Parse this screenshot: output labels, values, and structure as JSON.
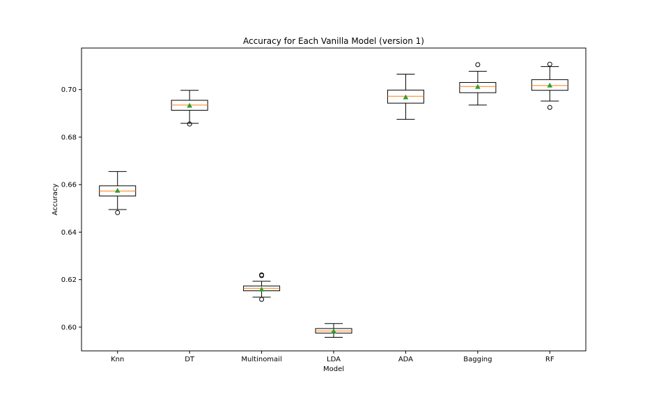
{
  "chart_data": {
    "type": "boxplot",
    "title": "Accuracy for Each Vanilla Model (version 1)",
    "xlabel": "Model",
    "ylabel": "Accuracy",
    "ylim": [
      0.59,
      0.7175
    ],
    "yticks": [
      0.6,
      0.62,
      0.64,
      0.66,
      0.68,
      0.7
    ],
    "ytick_labels": [
      "0.60",
      "0.62",
      "0.64",
      "0.66",
      "0.68",
      "0.70"
    ],
    "grid": false,
    "categories": [
      "Knn",
      "DT",
      "Multinomail",
      "LDA",
      "ADA",
      "Bagging",
      "RF"
    ],
    "boxes": [
      {
        "name": "Knn",
        "whisker_low": 0.6495,
        "q1": 0.6552,
        "median": 0.6573,
        "q3": 0.6595,
        "whisker_high": 0.6655,
        "mean": 0.6575,
        "outliers": [
          0.6482
        ]
      },
      {
        "name": "DT",
        "whisker_low": 0.6858,
        "q1": 0.6913,
        "median": 0.6935,
        "q3": 0.6955,
        "whisker_high": 0.6997,
        "mean": 0.6933,
        "outliers": [
          0.6855
        ]
      },
      {
        "name": "Multinomail",
        "whisker_low": 0.6126,
        "q1": 0.6153,
        "median": 0.6163,
        "q3": 0.6173,
        "whisker_high": 0.6193,
        "mean": 0.6159,
        "outliers": [
          0.6117,
          0.6217,
          0.622
        ]
      },
      {
        "name": "LDA",
        "whisker_low": 0.5957,
        "q1": 0.5975,
        "median": 0.5984,
        "q3": 0.5994,
        "whisker_high": 0.6015,
        "mean": 0.5983,
        "outliers": []
      },
      {
        "name": "ADA",
        "whisker_low": 0.6875,
        "q1": 0.6943,
        "median": 0.6972,
        "q3": 0.6998,
        "whisker_high": 0.7065,
        "mean": 0.6968,
        "outliers": []
      },
      {
        "name": "Bagging",
        "whisker_low": 0.6935,
        "q1": 0.6987,
        "median": 0.7013,
        "q3": 0.703,
        "whisker_high": 0.7077,
        "mean": 0.7012,
        "outliers": [
          0.7105
        ]
      },
      {
        "name": "RF",
        "whisker_low": 0.6952,
        "q1": 0.6997,
        "median": 0.7017,
        "q3": 0.7042,
        "whisker_high": 0.7097,
        "mean": 0.7018,
        "outliers": [
          0.6925,
          0.7107
        ]
      }
    ],
    "colors": {
      "box": "#000000",
      "median": "#ff7f0e",
      "mean": "#2ca02c",
      "outlier": "#000000"
    }
  }
}
